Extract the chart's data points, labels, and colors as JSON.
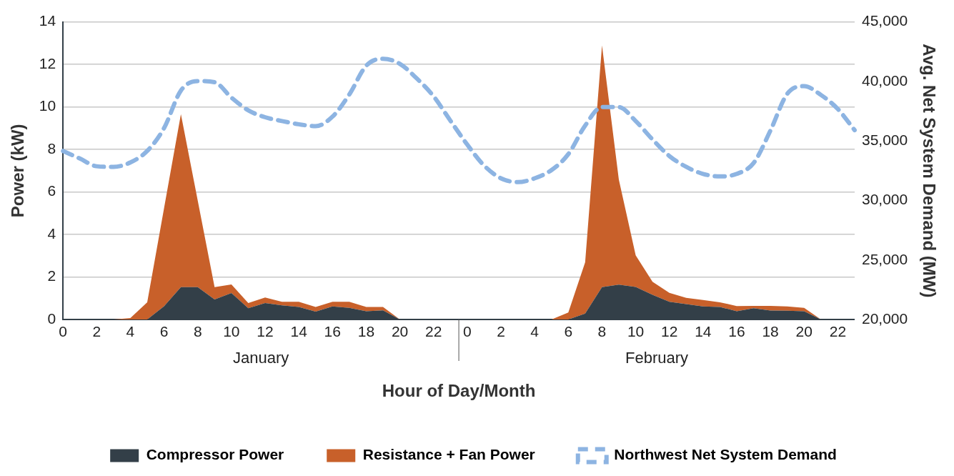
{
  "chart_data": {
    "type": "area",
    "stacked": true,
    "xlabel": "Hour of Day/Month",
    "ylabel": "Power (kW)",
    "y2label": "Avg. Net System Demand (MW)",
    "categories": [
      "0",
      null,
      "2",
      null,
      "4",
      null,
      "6",
      null,
      "8",
      null,
      "10",
      null,
      "12",
      null,
      "14",
      null,
      "16",
      null,
      "18",
      null,
      "20",
      null,
      "22",
      null,
      "0",
      null,
      "2",
      null,
      "4",
      null,
      "6",
      null,
      "8",
      null,
      "10",
      null,
      "12",
      null,
      "14",
      null,
      "16",
      null,
      "18",
      null,
      "20",
      null,
      "22",
      null
    ],
    "series": [
      {
        "name": "Compressor Power",
        "color": "#333f48",
        "values": [
          0,
          0,
          0,
          0,
          0,
          0,
          0.62,
          1.52,
          1.52,
          0.94,
          1.24,
          0.53,
          0.77,
          0.66,
          0.59,
          0.37,
          0.61,
          0.55,
          0.39,
          0.43,
          0,
          0,
          0,
          0,
          0,
          0,
          0,
          0,
          0,
          0,
          0,
          0.28,
          1.52,
          1.64,
          1.53,
          1.16,
          0.83,
          0.72,
          0.61,
          0.59,
          0.39,
          0.53,
          0.42,
          0.41,
          0.39,
          0,
          0,
          0
        ]
      },
      {
        "name": "Resistance + Fan Power",
        "color": "#c8602a",
        "values": [
          0,
          0,
          0,
          0,
          0.07,
          0.81,
          4.62,
          8.14,
          4.07,
          0.58,
          0.41,
          0.24,
          0.26,
          0.17,
          0.24,
          0.22,
          0.22,
          0.28,
          0.2,
          0.16,
          0,
          0,
          0,
          0,
          0,
          0,
          0,
          0,
          0,
          0,
          0.33,
          2.41,
          11.37,
          4.94,
          1.49,
          0.61,
          0.42,
          0.3,
          0.31,
          0.22,
          0.24,
          0.11,
          0.22,
          0.2,
          0.16,
          0,
          0,
          0
        ]
      },
      {
        "name": "Northwest Net System Demand",
        "type": "line",
        "axis": "y2",
        "color": "#8db4e2",
        "line_style": "dashed",
        "marker": "none",
        "values": [
          34160,
          33520,
          32870,
          32820,
          33190,
          34160,
          36080,
          39230,
          40030,
          39930,
          38640,
          37570,
          36990,
          36670,
          36400,
          36240,
          37040,
          38910,
          41310,
          41900,
          41470,
          40250,
          38750,
          36700,
          34690,
          32930,
          31860,
          31540,
          31860,
          32550,
          33890,
          36290,
          37840,
          37840,
          36670,
          35120,
          33730,
          32820,
          32230,
          32020,
          32230,
          33140,
          35870,
          38960,
          39600,
          38860,
          37680,
          35900
        ]
      }
    ],
    "ylim": [
      0,
      14
    ],
    "yticks": [
      0,
      2,
      4,
      6,
      8,
      10,
      12,
      14
    ],
    "y2lim": [
      20000,
      45000
    ],
    "y2ticks": [
      {
        "value": 20000,
        "label": "20,000"
      },
      {
        "value": 25000,
        "label": "25,000"
      },
      {
        "value": 30000,
        "label": "30,000"
      },
      {
        "value": 35000,
        "label": "35,000"
      },
      {
        "value": 40000,
        "label": "40,000"
      },
      {
        "value": 45000,
        "label": "45,000"
      }
    ],
    "grid": "y",
    "legend": "bottom",
    "annotations": [
      "January",
      "February"
    ]
  }
}
